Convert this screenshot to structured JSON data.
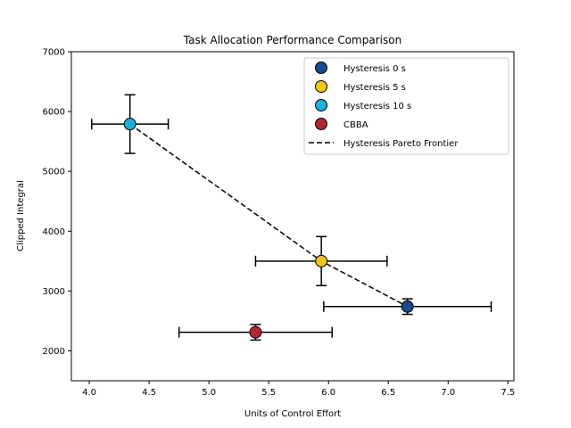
{
  "chart_data": {
    "type": "scatter",
    "title": "Task Allocation Performance Comparison",
    "xlabel": "Units of Control Effort",
    "ylabel": "Clipped Integral",
    "xlim": [
      3.85,
      7.55
    ],
    "ylim": [
      1500,
      7000
    ],
    "x_ticks": [
      4.0,
      4.5,
      5.0,
      5.5,
      6.0,
      6.5,
      7.0,
      7.5
    ],
    "y_ticks": [
      2000,
      3000,
      4000,
      5000,
      6000,
      7000
    ],
    "x_tick_labels": [
      "4.0",
      "4.5",
      "5.0",
      "5.5",
      "6.0",
      "6.5",
      "7.0",
      "7.5"
    ],
    "y_tick_labels": [
      "2000",
      "3000",
      "4000",
      "5000",
      "6000",
      "7000"
    ],
    "grid": false,
    "legend_position": "top-right",
    "series": [
      {
        "name": "Hysteresis 0 s",
        "x": 6.66,
        "y": 2740,
        "xerr": 0.7,
        "yerr": 130,
        "color": "#174c8f"
      },
      {
        "name": "Hysteresis 5 s",
        "x": 5.94,
        "y": 3500,
        "xerr": 0.55,
        "yerr": 410,
        "color": "#f5c518"
      },
      {
        "name": "Hysteresis 10 s",
        "x": 4.34,
        "y": 5790,
        "xerr": 0.32,
        "yerr": 490,
        "color": "#1ab0de"
      },
      {
        "name": "CBBA",
        "x": 5.39,
        "y": 2310,
        "xerr": 0.64,
        "yerr": 130,
        "color": "#b3272c"
      }
    ],
    "frontier": {
      "name": "Hysteresis Pareto Frontier",
      "x": [
        4.34,
        5.94,
        6.66
      ],
      "y": [
        5790,
        3500,
        2740
      ],
      "color": "#000000",
      "style": "dashed"
    }
  }
}
